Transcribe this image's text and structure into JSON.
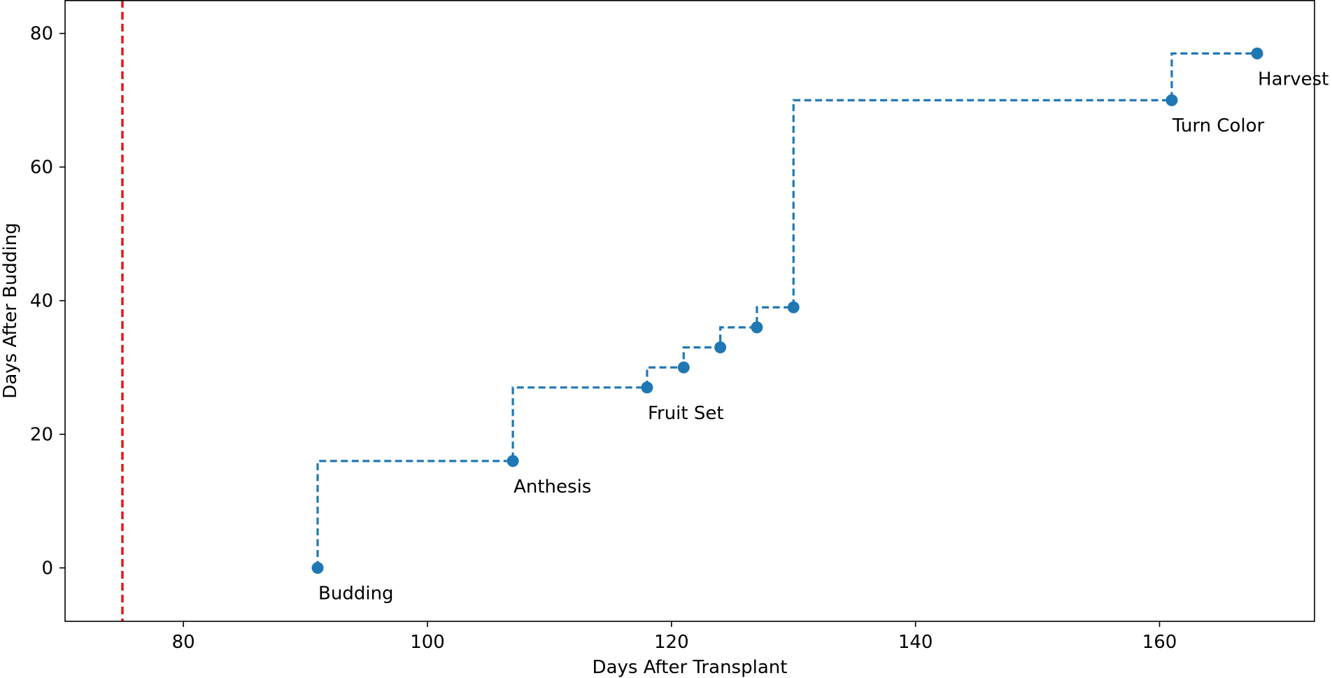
{
  "chart_data": {
    "type": "line",
    "title": "",
    "xlabel": "Days After Transplant",
    "ylabel": "Days After Budding",
    "xlim": [
      70.3,
      172.7
    ],
    "ylim": [
      -8,
      85
    ],
    "xticks": [
      80,
      100,
      120,
      140,
      160
    ],
    "yticks": [
      0,
      20,
      40,
      60,
      80
    ],
    "grid": false,
    "series": [
      {
        "style": "step-post dashed with markers",
        "color": "#1f77b4",
        "x": [
          91,
          107,
          118,
          121,
          124,
          127,
          130,
          161,
          168
        ],
        "y": [
          0,
          16,
          27,
          30,
          33,
          36,
          39,
          70,
          77
        ]
      }
    ],
    "annotations": [
      {
        "x": 91,
        "y": 0,
        "text": "Budding"
      },
      {
        "x": 107,
        "y": 16,
        "text": "Anthesis"
      },
      {
        "x": 118,
        "y": 27,
        "text": "Fruit Set"
      },
      {
        "x": 161,
        "y": 70,
        "text": "Turn Color"
      },
      {
        "x": 168,
        "y": 77,
        "text": "Harvest"
      }
    ],
    "vlines": [
      {
        "x": 75,
        "color": "#e8161b",
        "style": "dashed"
      }
    ]
  }
}
